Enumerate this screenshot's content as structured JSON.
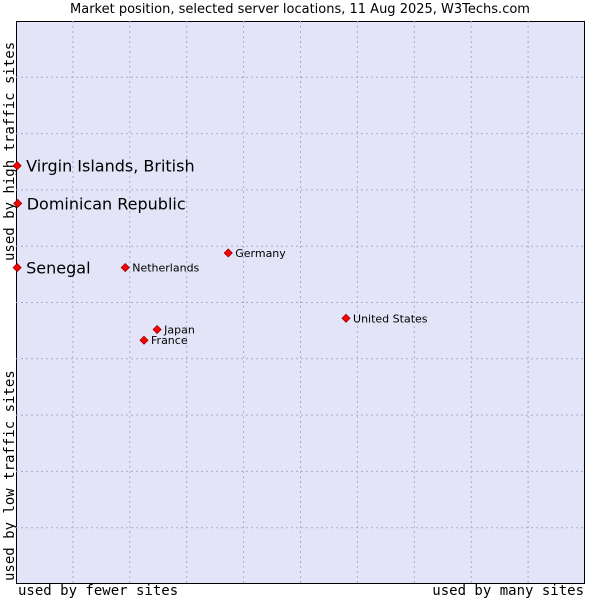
{
  "chart_data": {
    "type": "scatter",
    "title": "Market position, selected server locations, 11 Aug 2025, W3Techs.com",
    "xlabel_left": "used by fewer sites",
    "xlabel_right": "used by many sites",
    "ylabel_top": "used by high traffic sites",
    "ylabel_bottom": "used by low traffic sites",
    "xlim": [
      0,
      100
    ],
    "ylim": [
      0,
      100
    ],
    "grid": true,
    "point_color": "#ff0000",
    "points": [
      {
        "label": "Virgin Islands, British",
        "x": 0.2,
        "y": 74.3,
        "highlight": true
      },
      {
        "label": "Dominican Republic",
        "x": 0.3,
        "y": 67.6,
        "highlight": true
      },
      {
        "label": "Senegal",
        "x": 0.2,
        "y": 56.2,
        "highlight": true
      },
      {
        "label": "Germany",
        "x": 37.3,
        "y": 58.8,
        "highlight": false
      },
      {
        "label": "Netherlands",
        "x": 19.2,
        "y": 56.2,
        "highlight": false
      },
      {
        "label": "United States",
        "x": 58.0,
        "y": 47.2,
        "highlight": false
      },
      {
        "label": "Japan",
        "x": 24.8,
        "y": 45.2,
        "highlight": false
      },
      {
        "label": "France",
        "x": 22.5,
        "y": 43.3,
        "highlight": false
      }
    ]
  }
}
